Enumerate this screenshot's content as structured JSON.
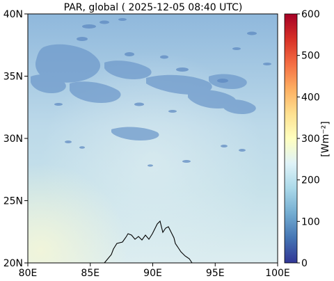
{
  "title": "PAR, global ( 2025-12-05 08:40 UTC)",
  "chart_data": {
    "type": "heatmap",
    "title": "PAR, global ( 2025-12-05 08:40 UTC)",
    "xlim": [
      80,
      100
    ],
    "ylim": [
      20,
      40
    ],
    "x_ticks": [
      {
        "value": 80,
        "label": "80E"
      },
      {
        "value": 85,
        "label": "85E"
      },
      {
        "value": 90,
        "label": "90E"
      },
      {
        "value": 95,
        "label": "95E"
      },
      {
        "value": 100,
        "label": "100E"
      }
    ],
    "y_ticks": [
      {
        "value": 20,
        "label": "20N"
      },
      {
        "value": 25,
        "label": "25N"
      },
      {
        "value": 30,
        "label": "30N"
      },
      {
        "value": 35,
        "label": "35N"
      },
      {
        "value": 40,
        "label": "40N"
      }
    ],
    "colorbar": {
      "label": "[Wm⁻²]",
      "range": [
        0,
        600
      ],
      "ticks": [
        0,
        100,
        200,
        300,
        400,
        500,
        600
      ],
      "colormap": [
        "#313695",
        "#4575b4",
        "#74add1",
        "#abd9e9",
        "#e0f3f8",
        "#ffffbf",
        "#fee090",
        "#fdae61",
        "#f46d43",
        "#d73027",
        "#a50026"
      ]
    },
    "field_description_values": {
      "typical_clear_sky": 200,
      "cloud_band_min": 120
    }
  }
}
